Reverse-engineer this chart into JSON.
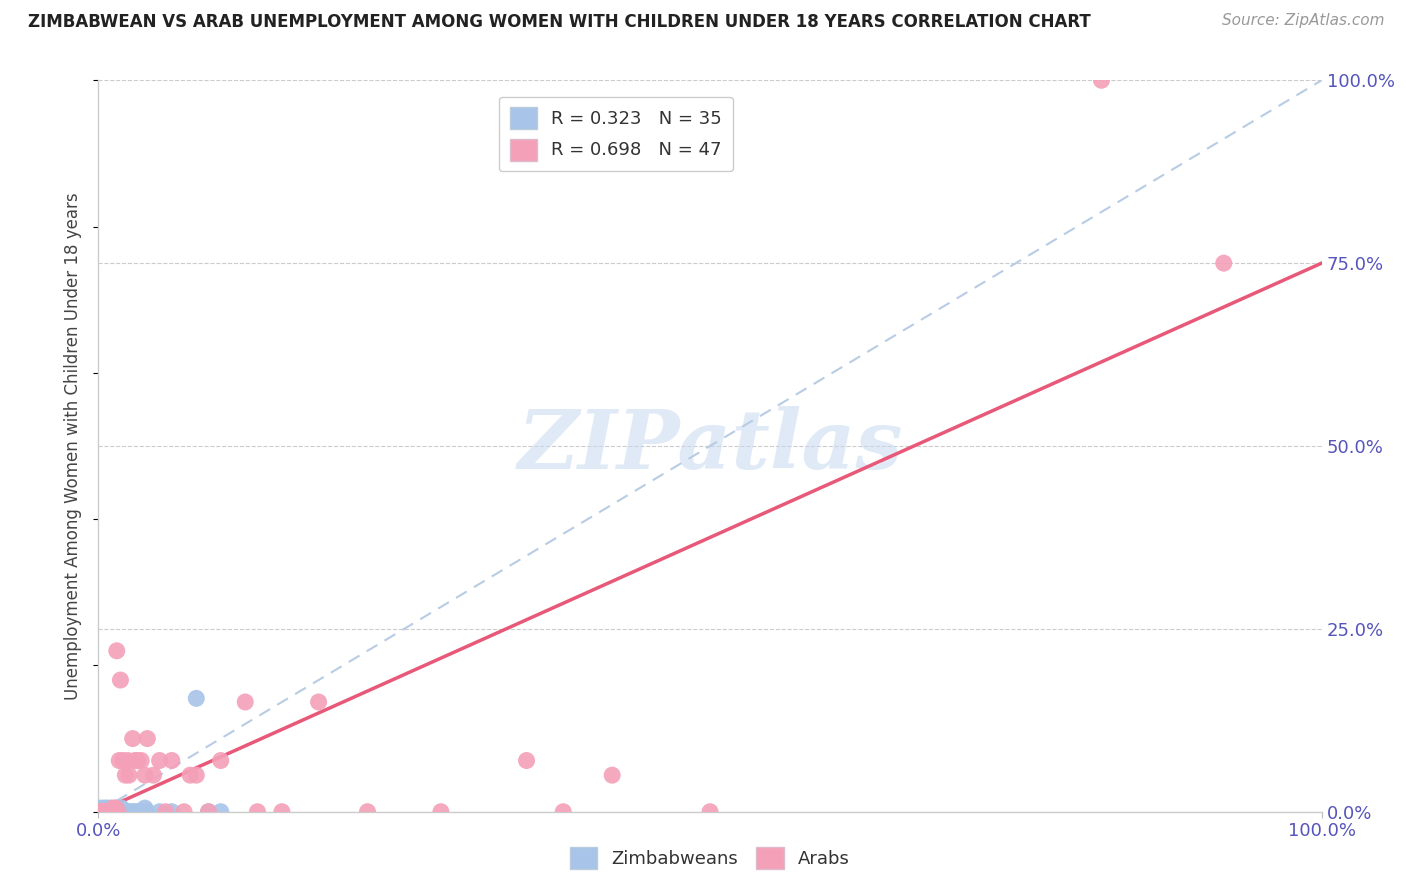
{
  "title": "ZIMBABWEAN VS ARAB UNEMPLOYMENT AMONG WOMEN WITH CHILDREN UNDER 18 YEARS CORRELATION CHART",
  "source": "Source: ZipAtlas.com",
  "ylabel": "Unemployment Among Women with Children Under 18 years",
  "xlim": [
    0,
    1
  ],
  "ylim": [
    0,
    1
  ],
  "yticks": [
    0.0,
    0.25,
    0.5,
    0.75,
    1.0
  ],
  "ytick_labels": [
    "0.0%",
    "25.0%",
    "50.0%",
    "75.0%",
    "100.0%"
  ],
  "xtick_labels_edge": [
    "0.0%",
    "100.0%"
  ],
  "zim_color": "#a8c4e8",
  "arab_color": "#f4a0b8",
  "zim_line_color": "#b8cce4",
  "arab_line_color": "#e85878",
  "R_zim": 0.323,
  "N_zim": 35,
  "R_arab": 0.698,
  "N_arab": 47,
  "legend_labels": [
    "Zimbabweans",
    "Arabs"
  ],
  "zim_line_x": [
    0.0,
    1.0
  ],
  "zim_line_y": [
    0.0,
    1.0
  ],
  "arab_line_x": [
    0.0,
    1.0
  ],
  "arab_line_y": [
    0.0,
    0.75
  ],
  "zim_scatter": [
    [
      0.0,
      0.0
    ],
    [
      0.001,
      0.0
    ],
    [
      0.002,
      0.005
    ],
    [
      0.003,
      0.0
    ],
    [
      0.004,
      0.0
    ],
    [
      0.005,
      0.005
    ],
    [
      0.006,
      0.0
    ],
    [
      0.007,
      0.005
    ],
    [
      0.008,
      0.0
    ],
    [
      0.009,
      0.0
    ],
    [
      0.01,
      0.005
    ],
    [
      0.012,
      0.0
    ],
    [
      0.013,
      0.0
    ],
    [
      0.014,
      0.0
    ],
    [
      0.015,
      0.005
    ],
    [
      0.016,
      0.0
    ],
    [
      0.017,
      0.0
    ],
    [
      0.018,
      0.0
    ],
    [
      0.019,
      0.005
    ],
    [
      0.02,
      0.0
    ],
    [
      0.022,
      0.0
    ],
    [
      0.024,
      0.0
    ],
    [
      0.026,
      0.0
    ],
    [
      0.028,
      0.0
    ],
    [
      0.03,
      0.0
    ],
    [
      0.032,
      0.0
    ],
    [
      0.034,
      0.0
    ],
    [
      0.036,
      0.0
    ],
    [
      0.038,
      0.005
    ],
    [
      0.04,
      0.0
    ],
    [
      0.05,
      0.0
    ],
    [
      0.06,
      0.0
    ],
    [
      0.08,
      0.155
    ],
    [
      0.09,
      0.0
    ],
    [
      0.1,
      0.0
    ]
  ],
  "arab_scatter": [
    [
      0.0,
      0.0
    ],
    [
      0.001,
      0.0
    ],
    [
      0.003,
      0.0
    ],
    [
      0.004,
      0.0
    ],
    [
      0.005,
      0.0
    ],
    [
      0.007,
      0.0
    ],
    [
      0.008,
      0.0
    ],
    [
      0.009,
      0.0
    ],
    [
      0.01,
      0.0
    ],
    [
      0.012,
      0.005
    ],
    [
      0.013,
      0.0
    ],
    [
      0.014,
      0.005
    ],
    [
      0.015,
      0.22
    ],
    [
      0.016,
      0.0
    ],
    [
      0.017,
      0.07
    ],
    [
      0.018,
      0.18
    ],
    [
      0.02,
      0.07
    ],
    [
      0.022,
      0.05
    ],
    [
      0.024,
      0.07
    ],
    [
      0.025,
      0.05
    ],
    [
      0.028,
      0.1
    ],
    [
      0.03,
      0.07
    ],
    [
      0.032,
      0.07
    ],
    [
      0.035,
      0.07
    ],
    [
      0.038,
      0.05
    ],
    [
      0.04,
      0.1
    ],
    [
      0.045,
      0.05
    ],
    [
      0.05,
      0.07
    ],
    [
      0.055,
      0.0
    ],
    [
      0.06,
      0.07
    ],
    [
      0.07,
      0.0
    ],
    [
      0.075,
      0.05
    ],
    [
      0.08,
      0.05
    ],
    [
      0.09,
      0.0
    ],
    [
      0.1,
      0.07
    ],
    [
      0.12,
      0.15
    ],
    [
      0.13,
      0.0
    ],
    [
      0.15,
      0.0
    ],
    [
      0.18,
      0.15
    ],
    [
      0.22,
      0.0
    ],
    [
      0.28,
      0.0
    ],
    [
      0.35,
      0.07
    ],
    [
      0.38,
      0.0
    ],
    [
      0.42,
      0.05
    ],
    [
      0.5,
      0.0
    ],
    [
      0.82,
      1.0
    ],
    [
      0.92,
      0.75
    ]
  ]
}
